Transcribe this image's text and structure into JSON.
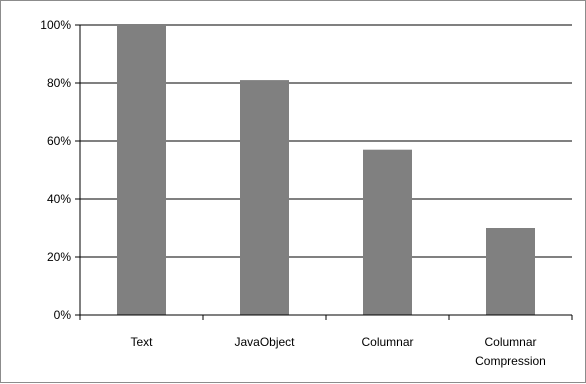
{
  "chart_data": {
    "type": "bar",
    "title": "",
    "xlabel": "",
    "ylabel": "",
    "categories": [
      [
        "Text"
      ],
      [
        "JavaObject"
      ],
      [
        "Columnar"
      ],
      [
        "Columnar",
        "Compression"
      ]
    ],
    "values": [
      100,
      81,
      57,
      30
    ],
    "ylim": [
      0,
      100
    ],
    "yticks": [
      "0%",
      "20%",
      "40%",
      "60%",
      "80%",
      "100%"
    ],
    "ytick_values": [
      0,
      20,
      40,
      60,
      80,
      100
    ],
    "grid": true,
    "legend": "none",
    "colors": {
      "bar": "#808080",
      "grid": "#000000",
      "axis": "#000000",
      "frame": "#8c8c8c"
    }
  }
}
